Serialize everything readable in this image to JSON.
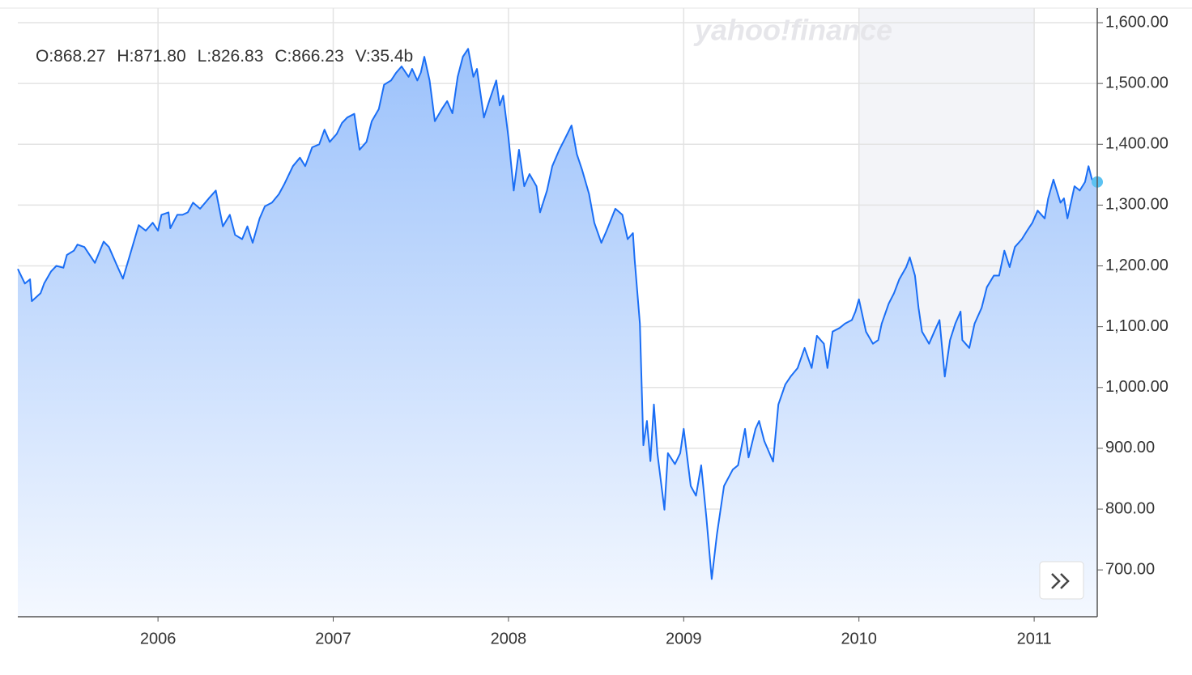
{
  "watermark": "yahoo!finance",
  "ohlc": [
    "O:868.27",
    "H:871.80",
    "L:826.83",
    "C:866.23",
    "V:35.4b"
  ],
  "chart_data": {
    "type": "area",
    "x": [
      2005.2,
      2005.24,
      2005.27,
      2005.28,
      2005.33,
      2005.35,
      2005.39,
      2005.42,
      2005.46,
      2005.48,
      2005.52,
      2005.54,
      2005.58,
      2005.64,
      2005.69,
      2005.72,
      2005.77,
      2005.8,
      2005.84,
      2005.89,
      2005.93,
      2005.97,
      2006.0,
      2006.02,
      2006.06,
      2006.07,
      2006.11,
      2006.14,
      2006.17,
      2006.2,
      2006.24,
      2006.29,
      2006.33,
      2006.37,
      2006.41,
      2006.44,
      2006.48,
      2006.51,
      2006.54,
      2006.58,
      2006.61,
      2006.65,
      2006.69,
      2006.72,
      2006.77,
      2006.81,
      2006.84,
      2006.88,
      2006.92,
      2006.95,
      2006.98,
      2007.02,
      2007.05,
      2007.08,
      2007.12,
      2007.15,
      2007.19,
      2007.22,
      2007.26,
      2007.29,
      2007.33,
      2007.36,
      2007.39,
      2007.43,
      2007.45,
      2007.48,
      2007.5,
      2007.52,
      2007.55,
      2007.58,
      2007.62,
      2007.65,
      2007.68,
      2007.71,
      2007.74,
      2007.77,
      2007.8,
      2007.82,
      2007.86,
      2007.89,
      2007.93,
      2007.95,
      2007.97,
      2008.0,
      2008.03,
      2008.06,
      2008.09,
      2008.12,
      2008.16,
      2008.18,
      2008.22,
      2008.25,
      2008.29,
      2008.32,
      2008.36,
      2008.39,
      2008.42,
      2008.46,
      2008.49,
      2008.53,
      2008.56,
      2008.61,
      2008.65,
      2008.68,
      2008.71,
      2008.72,
      2008.75,
      2008.77,
      2008.79,
      2008.81,
      2008.83,
      2008.85,
      2008.89,
      2008.91,
      2008.95,
      2008.98,
      2009.0,
      2009.04,
      2009.07,
      2009.1,
      2009.13,
      2009.16,
      2009.19,
      2009.23,
      2009.28,
      2009.31,
      2009.35,
      2009.37,
      2009.41,
      2009.43,
      2009.46,
      2009.51,
      2009.54,
      2009.58,
      2009.61,
      2009.65,
      2009.69,
      2009.73,
      2009.76,
      2009.8,
      2009.82,
      2009.85,
      2009.89,
      2009.92,
      2009.96,
      2009.98,
      2010.0,
      2010.04,
      2010.08,
      2010.11,
      2010.13,
      2010.17,
      2010.2,
      2010.23,
      2010.27,
      2010.29,
      2010.32,
      2010.34,
      2010.36,
      2010.4,
      2010.43,
      2010.46,
      2010.49,
      2010.52,
      2010.55,
      2010.58,
      2010.59,
      2010.63,
      2010.66,
      2010.7,
      2010.73,
      2010.77,
      2010.8,
      2010.83,
      2010.86,
      2010.89,
      2010.93,
      2010.96,
      2010.99,
      2011.02,
      2011.06,
      2011.08,
      2011.11,
      2011.15,
      2011.17,
      2011.19,
      2011.23,
      2011.26,
      2011.29,
      2011.31,
      2011.33,
      2011.36
    ],
    "values": [
      1195,
      1171,
      1178,
      1142,
      1155,
      1171,
      1191,
      1200,
      1197,
      1218,
      1225,
      1235,
      1231,
      1205,
      1240,
      1231,
      1198,
      1179,
      1218,
      1267,
      1258,
      1271,
      1258,
      1284,
      1288,
      1262,
      1284,
      1284,
      1288,
      1304,
      1294,
      1311,
      1324,
      1265,
      1284,
      1251,
      1244,
      1265,
      1238,
      1278,
      1298,
      1304,
      1318,
      1334,
      1364,
      1378,
      1364,
      1395,
      1400,
      1424,
      1404,
      1417,
      1435,
      1444,
      1450,
      1391,
      1404,
      1438,
      1458,
      1498,
      1505,
      1518,
      1528,
      1511,
      1524,
      1505,
      1518,
      1544,
      1505,
      1438,
      1458,
      1471,
      1451,
      1511,
      1544,
      1557,
      1511,
      1524,
      1444,
      1471,
      1505,
      1464,
      1480,
      1411,
      1324,
      1391,
      1331,
      1351,
      1331,
      1288,
      1324,
      1364,
      1391,
      1408,
      1431,
      1384,
      1358,
      1318,
      1271,
      1238,
      1258,
      1294,
      1284,
      1244,
      1254,
      1211,
      1105,
      905,
      945,
      879,
      972,
      892,
      799,
      892,
      874,
      892,
      932,
      838,
      822,
      872,
      785,
      685,
      759,
      838,
      865,
      872,
      932,
      885,
      932,
      945,
      912,
      878,
      972,
      1005,
      1018,
      1032,
      1065,
      1032,
      1085,
      1072,
      1032,
      1092,
      1098,
      1105,
      1111,
      1125,
      1145,
      1092,
      1072,
      1078,
      1105,
      1138,
      1155,
      1178,
      1198,
      1214,
      1184,
      1131,
      1092,
      1072,
      1092,
      1111,
      1018,
      1078,
      1105,
      1125,
      1078,
      1065,
      1105,
      1131,
      1165,
      1184,
      1184,
      1225,
      1198,
      1231,
      1244,
      1258,
      1271,
      1291,
      1278,
      1311,
      1342,
      1304,
      1311,
      1278,
      1331,
      1324,
      1338,
      1364,
      1342,
      1338
    ],
    "color": "#1a6ef5",
    "xlim": [
      2005.2,
      2011.36
    ],
    "xticks": [
      2006,
      2007,
      2008,
      2009,
      2010,
      2011
    ],
    "ylim": [
      623,
      1624
    ],
    "yticks": [
      {
        "value": 700,
        "label": "700.00"
      },
      {
        "value": 800,
        "label": "800.00"
      },
      {
        "value": 900,
        "label": "900.00"
      },
      {
        "value": 1000,
        "label": "1,000.00"
      },
      {
        "value": 1100,
        "label": "1,100.00"
      },
      {
        "value": 1200,
        "label": "1,200.00"
      },
      {
        "value": 1300,
        "label": "1,300.00"
      },
      {
        "value": 1400,
        "label": "1,400.00"
      },
      {
        "value": 1500,
        "label": "1,500.00"
      },
      {
        "value": 1600,
        "label": "1,600.00"
      }
    ],
    "shaded_range": [
      2010,
      2011
    ],
    "grid": true
  }
}
